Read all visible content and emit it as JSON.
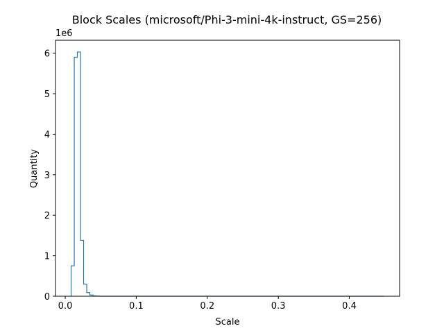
{
  "chart_data": {
    "type": "histogram-step",
    "title": "Block Scales (microsoft/Phi-3-mini-4k-instruct, GS=256)",
    "xlabel": "Scale",
    "ylabel": "Quantity",
    "y_offset_label": "1e6",
    "xlim": [
      -0.0137,
      0.4708
    ],
    "ylim": [
      0,
      6.32
    ],
    "x_ticks": [
      0.0,
      0.1,
      0.2,
      0.3,
      0.4
    ],
    "x_tick_labels": [
      "0.0",
      "0.1",
      "0.2",
      "0.3",
      "0.4"
    ],
    "y_ticks": [
      0,
      1,
      2,
      3,
      4,
      5,
      6
    ],
    "y_tick_labels": [
      "0",
      "1",
      "2",
      "3",
      "4",
      "5",
      "6"
    ],
    "bin_edges": [
      0.0083,
      0.0127,
      0.0171,
      0.0215,
      0.0259,
      0.0303,
      0.0347,
      0.0391,
      0.0435,
      0.0479,
      0.4488
    ],
    "counts_millions": [
      0.75,
      5.9,
      6.03,
      1.38,
      0.3,
      0.09,
      0.03,
      0.01,
      0.004,
      0.0
    ],
    "line_color": "#1f77b4"
  }
}
